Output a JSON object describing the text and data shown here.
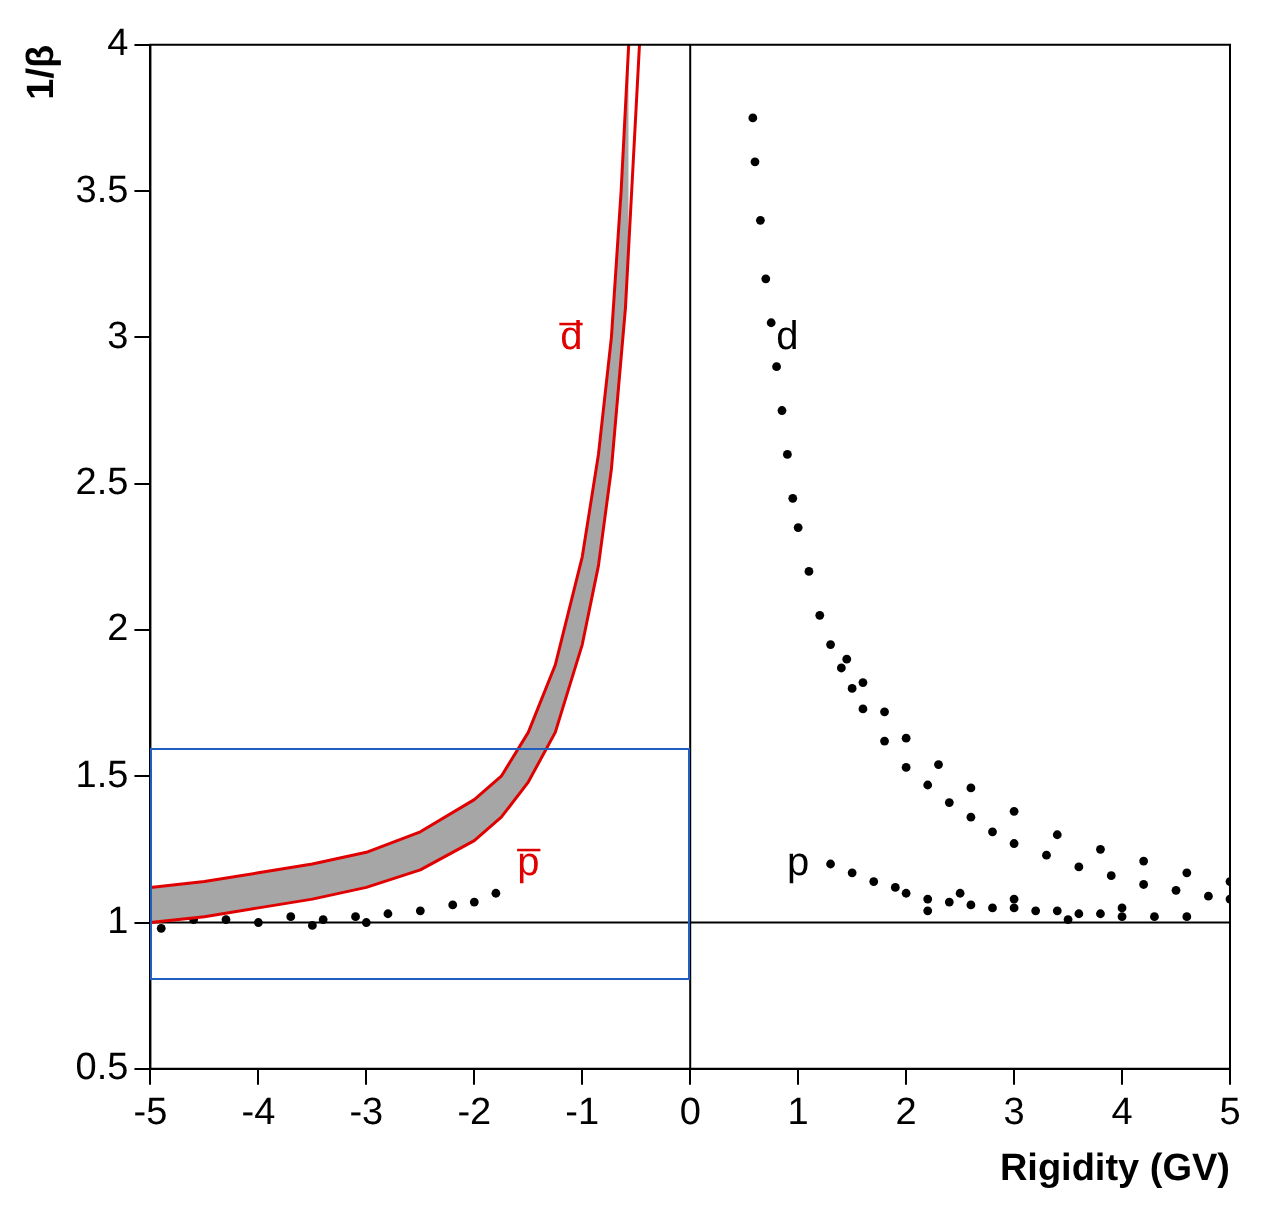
{
  "chart_data": {
    "type": "scatter",
    "xlabel": "Rigidity (GV)",
    "ylabel": "1/β",
    "xlim": [
      -5,
      5
    ],
    "ylim": [
      0.5,
      4
    ],
    "xticks": [
      -5,
      -4,
      -3,
      -2,
      -1,
      0,
      1,
      2,
      3,
      4,
      5
    ],
    "yticks": [
      0.5,
      1,
      1.5,
      2,
      2.5,
      3,
      3.5,
      4
    ],
    "grid": false,
    "legend": false,
    "series": [
      {
        "type": "line",
        "color": "#e00000",
        "marker": "none",
        "x": [
          -5,
          -4.5,
          -4,
          -3.5,
          -3,
          -2.5,
          -2,
          -1.75,
          -1.5,
          -1.25,
          -1,
          -0.85,
          -0.73,
          -0.6,
          -0.47
        ],
        "values": [
          1,
          1.02,
          1.05,
          1.08,
          1.12,
          1.18,
          1.28,
          1.36,
          1.48,
          1.65,
          1.95,
          2.22,
          2.55,
          3.1,
          4
        ]
      },
      {
        "type": "line",
        "color": "#e00000",
        "marker": "none",
        "x": [
          -5,
          -4.5,
          -4,
          -3.5,
          -3,
          -2.5,
          -2,
          -1.75,
          -1.5,
          -1.25,
          -1,
          -0.85,
          -0.73,
          -0.64,
          -0.57
        ],
        "values": [
          1.12,
          1.14,
          1.17,
          1.2,
          1.24,
          1.31,
          1.42,
          1.5,
          1.65,
          1.88,
          2.25,
          2.6,
          3,
          3.5,
          4
        ]
      },
      {
        "color": "#000000",
        "marker": "circle",
        "x": [
          0.58,
          0.6,
          0.65,
          0.7,
          0.75,
          0.8,
          0.85,
          0.9,
          0.95,
          1,
          1.1,
          1.2,
          1.3,
          1.4,
          1.5,
          1.6,
          1.8,
          2,
          2.2,
          2.4,
          2.6,
          2.8,
          3,
          3.3,
          3.6,
          3.9,
          4.2,
          4.5,
          4.8,
          5
        ],
        "values": [
          3.75,
          3.6,
          3.4,
          3.2,
          3.05,
          2.9,
          2.75,
          2.6,
          2.45,
          2.35,
          2.2,
          2.05,
          1.95,
          1.87,
          1.8,
          1.73,
          1.62,
          1.53,
          1.47,
          1.41,
          1.36,
          1.31,
          1.27,
          1.23,
          1.19,
          1.16,
          1.13,
          1.11,
          1.09,
          1.08
        ]
      },
      {
        "color": "#000000",
        "marker": "circle",
        "x": [
          1.45,
          1.6,
          1.8,
          2,
          2.3,
          2.6,
          3,
          3.4,
          3.8,
          4.2,
          4.6,
          5
        ],
        "values": [
          1.9,
          1.82,
          1.72,
          1.63,
          1.54,
          1.46,
          1.38,
          1.3,
          1.25,
          1.21,
          1.17,
          1.14
        ]
      },
      {
        "color": "#000000",
        "marker": "circle",
        "x": [
          1.3,
          1.5,
          1.7,
          1.9,
          2,
          2.2,
          2.4,
          2.6,
          2.8,
          3,
          3.2,
          3.4,
          3.6,
          3.8,
          4,
          4.3,
          4.6,
          2.5,
          3,
          3.5,
          2.2,
          4
        ],
        "values": [
          1.2,
          1.17,
          1.14,
          1.12,
          1.1,
          1.08,
          1.07,
          1.06,
          1.05,
          1.05,
          1.04,
          1.04,
          1.03,
          1.03,
          1.02,
          1.02,
          1.02,
          1.1,
          1.08,
          1.01,
          1.04,
          1.05
        ]
      },
      {
        "color": "#000000",
        "marker": "circle",
        "x": [
          -4.9,
          -4.6,
          -4.3,
          -4,
          -3.7,
          -3.4,
          -3.1,
          -2.8,
          -2.5,
          -2.2,
          -2,
          -1.8,
          -3.5,
          -3
        ],
        "values": [
          0.98,
          1.01,
          1.01,
          1,
          1.02,
          1.01,
          1.02,
          1.03,
          1.04,
          1.06,
          1.07,
          1.1,
          0.99,
          1
        ]
      }
    ],
    "ref_lines": [
      {
        "axis": "y",
        "value": 1,
        "color": "#000000"
      },
      {
        "axis": "x",
        "value": 0,
        "color": "#000000"
      }
    ],
    "annotations": [
      "d̅",
      "d",
      "p̅",
      "p"
    ]
  }
}
